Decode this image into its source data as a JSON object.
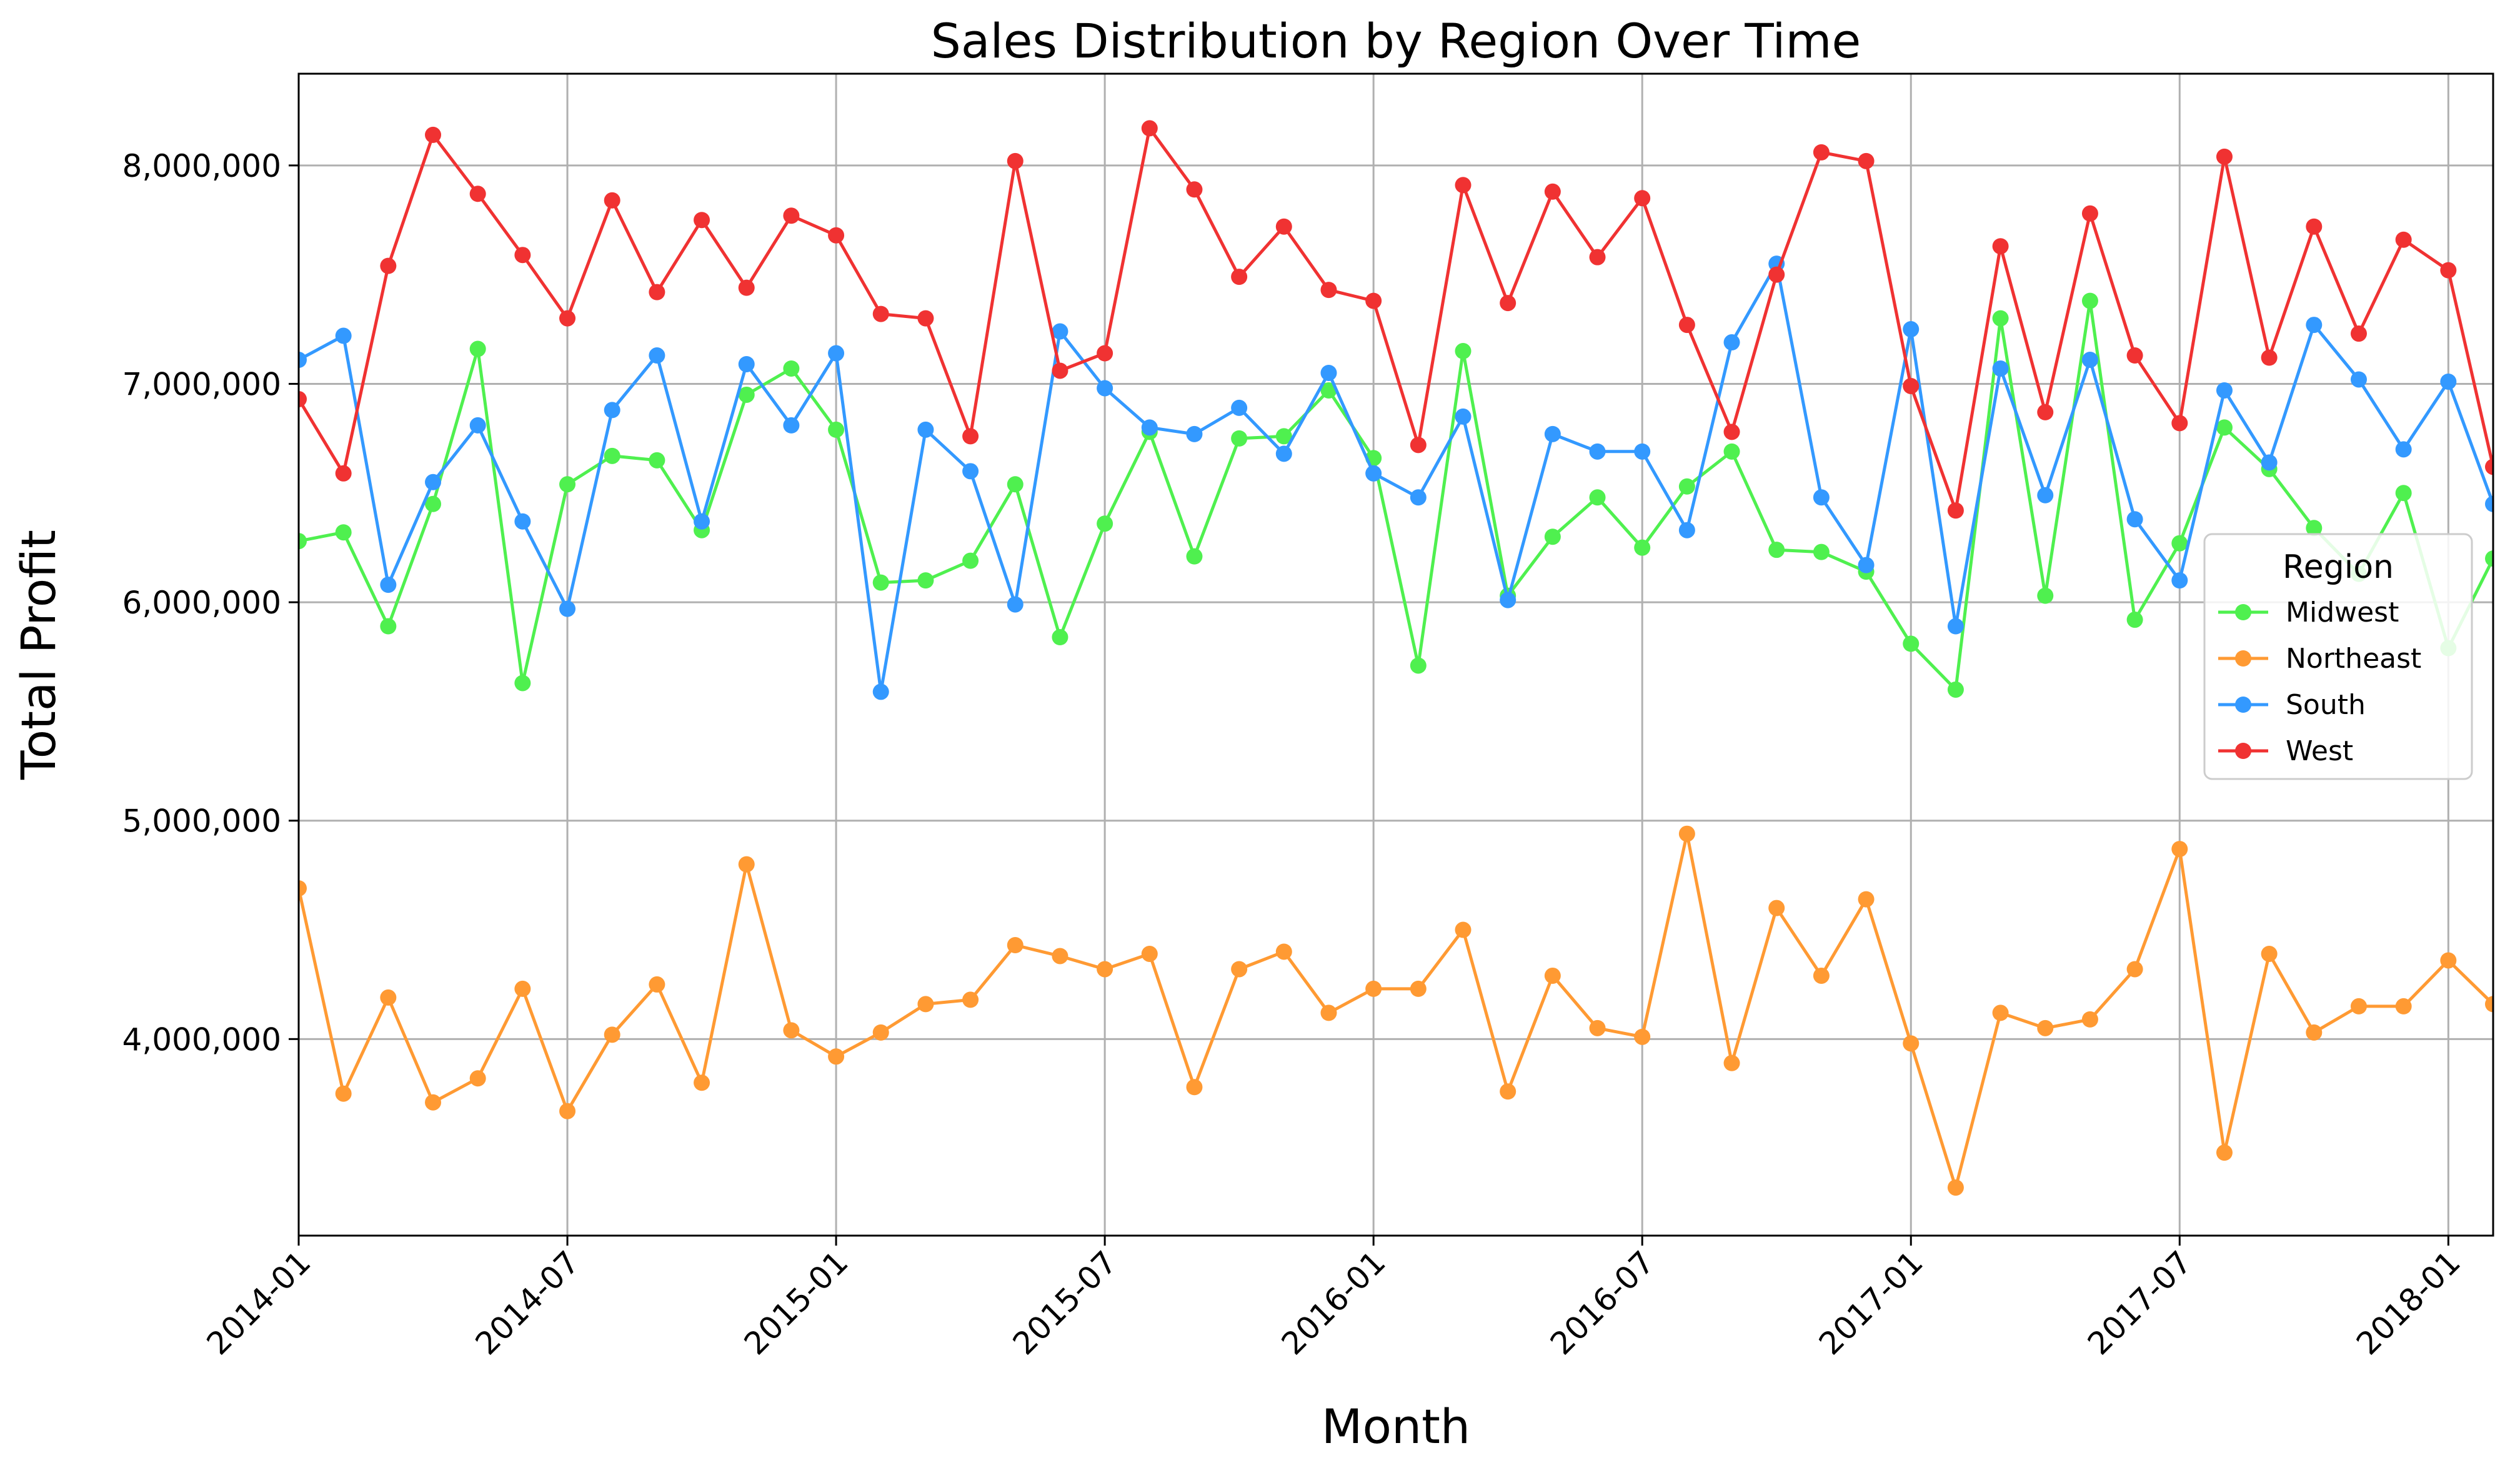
{
  "chart_data": {
    "type": "line",
    "title": "Sales Distribution by Region Over Time",
    "xlabel": "Month",
    "ylabel": "Total Profit",
    "x": [
      "2014-01",
      "2014-02",
      "2014-03",
      "2014-04",
      "2014-05",
      "2014-06",
      "2014-07",
      "2014-08",
      "2014-09",
      "2014-10",
      "2014-11",
      "2014-12",
      "2015-01",
      "2015-02",
      "2015-03",
      "2015-04",
      "2015-05",
      "2015-06",
      "2015-07",
      "2015-08",
      "2015-09",
      "2015-10",
      "2015-11",
      "2015-12",
      "2016-01",
      "2016-02",
      "2016-03",
      "2016-04",
      "2016-05",
      "2016-06",
      "2016-07",
      "2016-08",
      "2016-09",
      "2016-10",
      "2016-11",
      "2016-12",
      "2017-01",
      "2017-02",
      "2017-03",
      "2017-04",
      "2017-05",
      "2017-06",
      "2017-07",
      "2017-08",
      "2017-09",
      "2017-10",
      "2017-11",
      "2017-12",
      "2018-01",
      "2018-02"
    ],
    "xticks": [
      "2014-01",
      "2014-07",
      "2015-01",
      "2015-07",
      "2016-01",
      "2016-07",
      "2017-01",
      "2017-07",
      "2018-01"
    ],
    "yticks": [
      4000000,
      5000000,
      6000000,
      7000000,
      8000000
    ],
    "ytick_labels": [
      "4,000,000",
      "5,000,000",
      "6,000,000",
      "7,000,000",
      "8,000,000"
    ],
    "ylim": [
      3100000,
      8420000
    ],
    "grid": true,
    "legend": {
      "title": "Region",
      "placement": "right"
    },
    "series": [
      {
        "name": "Midwest",
        "color": "#4ff04f",
        "values": [
          6280000,
          6320000,
          5890000,
          6450000,
          7160000,
          5630000,
          6540000,
          6670000,
          6650000,
          6330000,
          6950000,
          7070000,
          6790000,
          6090000,
          6100000,
          6190000,
          6540000,
          5840000,
          6360000,
          6780000,
          6210000,
          6750000,
          6760000,
          6970000,
          6660000,
          5710000,
          7150000,
          6030000,
          6300000,
          6480000,
          6250000,
          6530000,
          6690000,
          6240000,
          6230000,
          6140000,
          5810000,
          5600000,
          7300000,
          6030000,
          7380000,
          5920000,
          6270000,
          6800000,
          6610000,
          6340000,
          6130000,
          6500000,
          5790000,
          6200000
        ]
      },
      {
        "name": "Northeast",
        "color": "#ff9a33",
        "values": [
          4690000,
          3750000,
          4190000,
          3710000,
          3820000,
          4230000,
          3670000,
          4020000,
          4250000,
          3800000,
          4800000,
          4040000,
          3920000,
          4030000,
          4160000,
          4180000,
          4430000,
          4380000,
          4320000,
          4390000,
          3780000,
          4320000,
          4400000,
          4120000,
          4230000,
          4230000,
          4500000,
          3760000,
          4290000,
          4050000,
          4010000,
          4940000,
          3890000,
          4600000,
          4290000,
          4640000,
          3980000,
          3320000,
          4120000,
          4050000,
          4090000,
          4320000,
          4870000,
          3480000,
          4390000,
          4030000,
          4150000,
          4150000,
          4360000,
          4160000
        ]
      },
      {
        "name": "South",
        "color": "#3399ff",
        "values": [
          7110000,
          7220000,
          6080000,
          6550000,
          6810000,
          6370000,
          5970000,
          6880000,
          7130000,
          6370000,
          7090000,
          6810000,
          7140000,
          5590000,
          6790000,
          6600000,
          5990000,
          7240000,
          6980000,
          6800000,
          6770000,
          6890000,
          6680000,
          7050000,
          6590000,
          6480000,
          6850000,
          6010000,
          6770000,
          6690000,
          6690000,
          6330000,
          7190000,
          7550000,
          6480000,
          6170000,
          7250000,
          5890000,
          7070000,
          6490000,
          7110000,
          6380000,
          6100000,
          6970000,
          6640000,
          7270000,
          7020000,
          6700000,
          7010000,
          6450000
        ]
      },
      {
        "name": "West",
        "color": "#f03232",
        "values": [
          6930000,
          6590000,
          7540000,
          8140000,
          7870000,
          7590000,
          7300000,
          7840000,
          7420000,
          7750000,
          7440000,
          7770000,
          7680000,
          7320000,
          7300000,
          6760000,
          8020000,
          7060000,
          7140000,
          8170000,
          7890000,
          7490000,
          7720000,
          7430000,
          7380000,
          6720000,
          7910000,
          7370000,
          7880000,
          7580000,
          7850000,
          7270000,
          6780000,
          7500000,
          8060000,
          8020000,
          6990000,
          6420000,
          7630000,
          6870000,
          7780000,
          7130000,
          6820000,
          8040000,
          7120000,
          7720000,
          7230000,
          7660000,
          7520000,
          6620000
        ]
      }
    ]
  }
}
